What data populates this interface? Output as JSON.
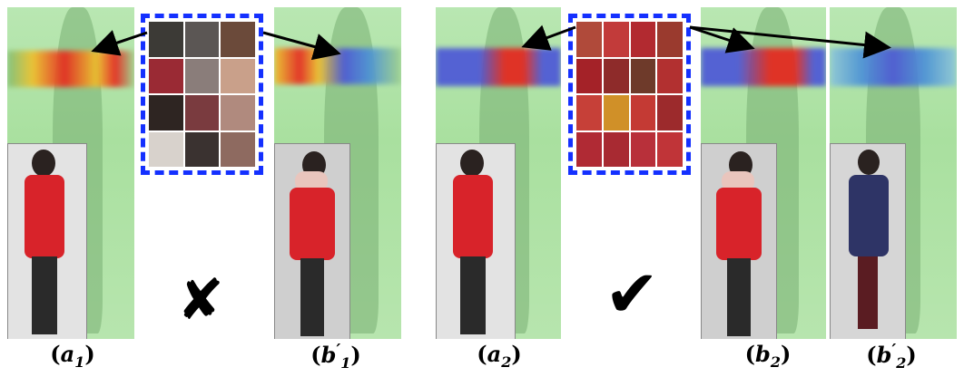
{
  "figure": {
    "labels": {
      "a1": {
        "main": "a",
        "sub": "1",
        "prime": ""
      },
      "b1p": {
        "main": "b",
        "sub": "1",
        "prime": "′"
      },
      "a2": {
        "main": "a",
        "sub": "2",
        "prime": ""
      },
      "b2": {
        "main": "b",
        "sub": "2",
        "prime": ""
      },
      "b2p": {
        "main": "b",
        "sub": "2",
        "prime": "′"
      }
    },
    "marks": {
      "wrong": "✘",
      "right": "✔"
    },
    "colors": {
      "heatmap_green": "#b3e4aa",
      "patch_border": "#1430ff",
      "coat_red": "#d8232a",
      "attention_red": "#e8241c",
      "attention_yellow": "#f2d21b",
      "attention_blue": "#4a55d8"
    },
    "patch_grids": {
      "left": [
        "#3c3a36",
        "#5b5654",
        "#6b4a3a",
        "#9a2a34",
        "#8a7d7a",
        "#c9a08a",
        "#2e2522",
        "#7a3b3f",
        "#b08a7e",
        "#d8d2cc",
        "#3a3230",
        "#8e6a60"
      ],
      "right": [
        "#b04a3a",
        "#c23b3a",
        "#b22a30",
        "#9a3a2e",
        "#a42228",
        "#8e2b2a",
        "#6e3a2a",
        "#b23030",
        "#c64038",
        "#d09028",
        "#c43a34",
        "#9c2a2c",
        "#b02a34",
        "#a82a32",
        "#b8303a",
        "#c03438"
      ]
    }
  }
}
